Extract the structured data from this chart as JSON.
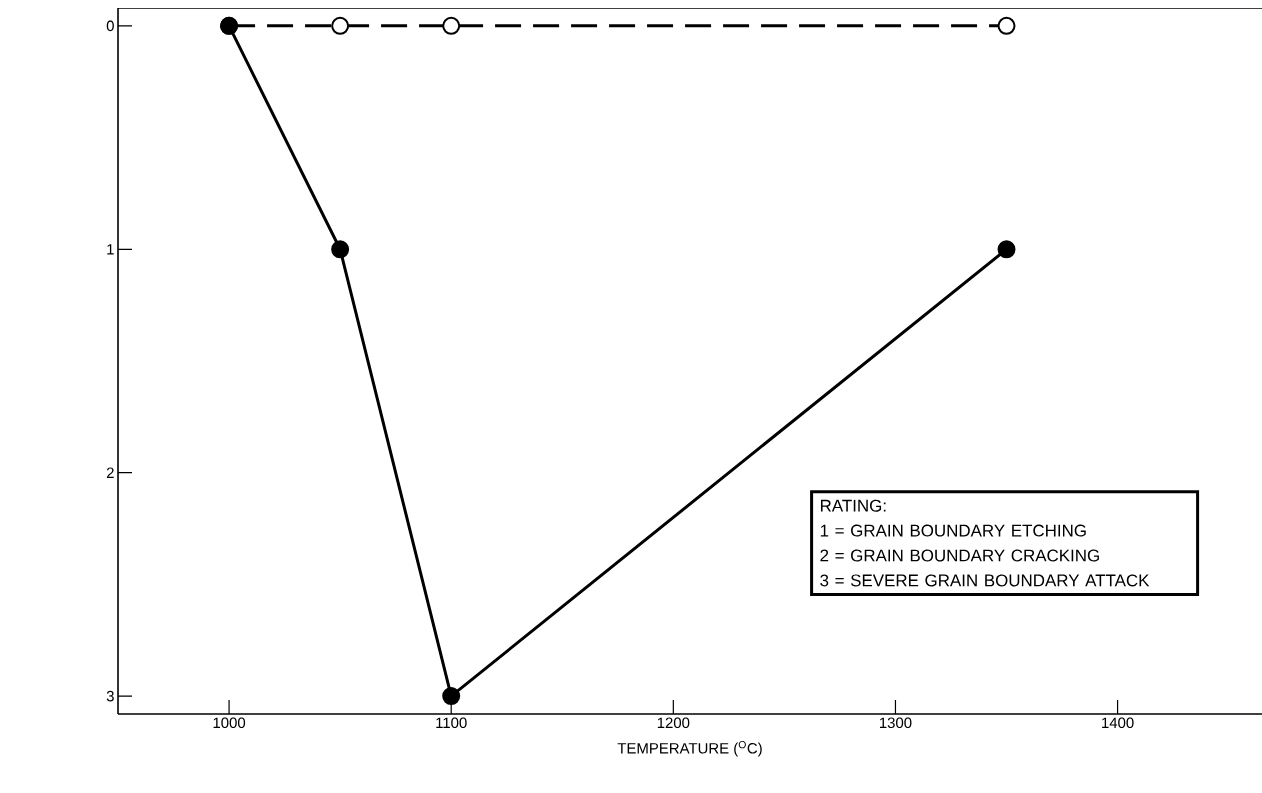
{
  "chart_data": {
    "type": "line",
    "xlabel": "TEMPERATURE ($^{O}$C)",
    "xlim": [
      950,
      1465
    ],
    "ylim": [
      3.08,
      -0.08
    ],
    "xticks": [
      1000,
      1100,
      1200,
      1300,
      1400
    ],
    "yticks": [
      0,
      1,
      2,
      3
    ],
    "x": [
      1000,
      1050,
      1100,
      1350
    ],
    "series": [
      {
        "color": "#000000",
        "values": [
          0,
          0,
          0,
          0
        ],
        "line_style": "dashed",
        "marker": "circle"
      },
      {
        "color": "#000000",
        "values": [
          0,
          1,
          3,
          1
        ],
        "line_style": "solid",
        "marker": "circle"
      }
    ],
    "grid": false,
    "annotations": [
      "RATING:",
      "1 = GRAIN BOUNDARY ETCHING",
      "2 = GRAIN BOUNDARY CRACKING",
      "3 = SEVERE GRAIN BOUNDARY ATTACK"
    ]
  }
}
